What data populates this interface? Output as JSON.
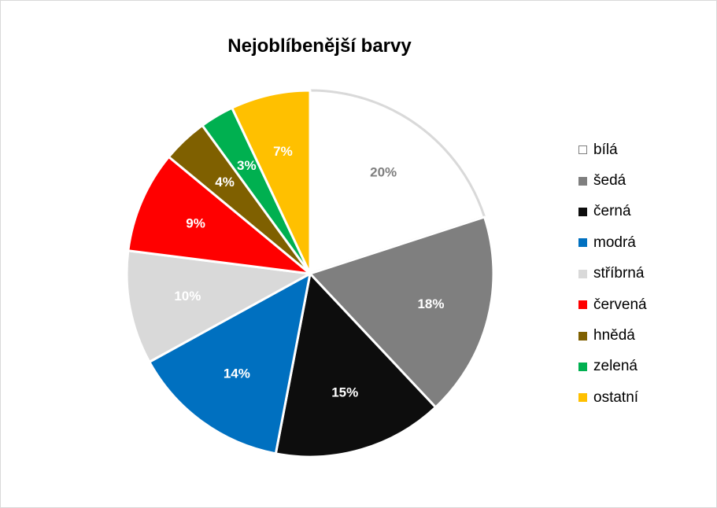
{
  "chart_data": {
    "type": "pie",
    "title": "Nejoblíbenější barvy",
    "legend_position": "right",
    "slices": [
      {
        "name": "bílá",
        "value": 20,
        "label": "20%",
        "color": "#ffffff",
        "label_color": "#7f7f7f"
      },
      {
        "name": "šedá",
        "value": 18,
        "label": "18%",
        "color": "#7f7f7f",
        "label_color": "#ffffff"
      },
      {
        "name": "černá",
        "value": 15,
        "label": "15%",
        "color": "#0d0d0d",
        "label_color": "#ffffff"
      },
      {
        "name": "modrá",
        "value": 14,
        "label": "14%",
        "color": "#0070c0",
        "label_color": "#ffffff"
      },
      {
        "name": "stříbrná",
        "value": 10,
        "label": "10%",
        "color": "#d9d9d9",
        "label_color": "#ffffff"
      },
      {
        "name": "červená",
        "value": 9,
        "label": "9%",
        "color": "#ff0000",
        "label_color": "#ffffff"
      },
      {
        "name": "hnědá",
        "value": 4,
        "label": "4%",
        "color": "#7f6000",
        "label_color": "#ffffff"
      },
      {
        "name": "zelená",
        "value": 3,
        "label": "3%",
        "color": "#00b050",
        "label_color": "#ffffff"
      },
      {
        "name": "ostatní",
        "value": 7,
        "label": "7%",
        "color": "#ffc000",
        "label_color": "#ffffff"
      }
    ]
  }
}
